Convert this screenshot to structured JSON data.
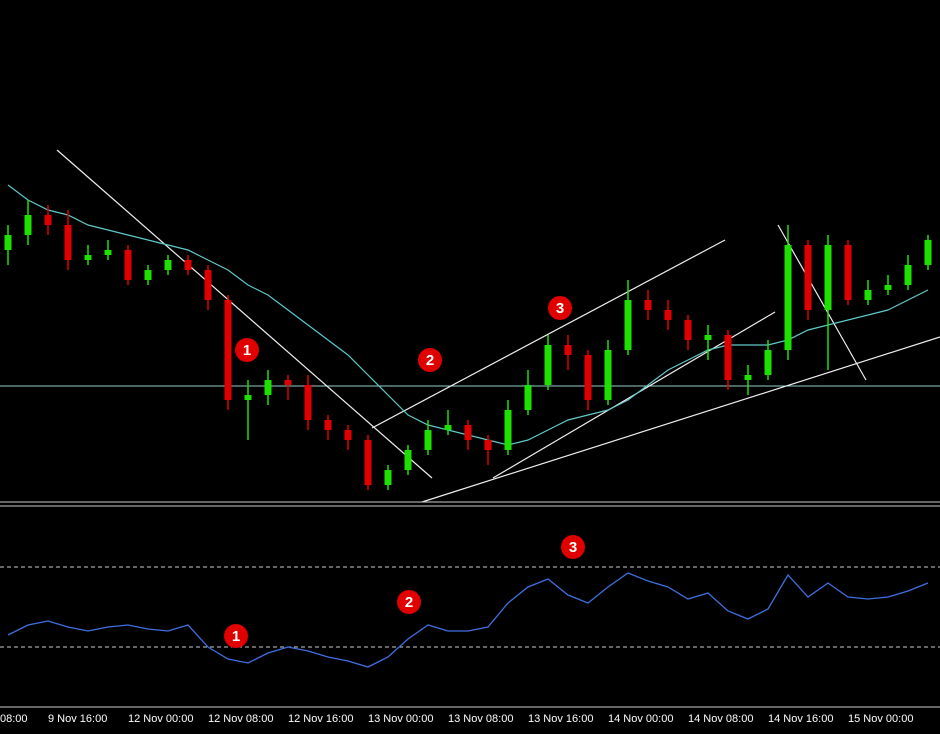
{
  "chart_data": [
    {
      "type": "candlestick",
      "ylim": [
        0,
        100
      ],
      "up_color": "#1ee000",
      "down_color": "#e00000",
      "open": [
        50,
        53,
        57,
        55,
        48,
        49,
        50,
        44,
        46,
        48,
        46,
        40,
        20,
        21,
        24,
        23,
        16,
        14,
        12,
        3,
        6,
        10,
        14,
        15,
        12,
        10,
        18,
        23,
        31,
        29,
        20,
        30,
        40,
        38,
        36,
        32,
        33,
        24,
        25,
        30,
        51,
        38,
        51,
        40,
        42,
        43,
        47
      ],
      "high": [
        55,
        60,
        59,
        58,
        51,
        52,
        51,
        47,
        49,
        49,
        47,
        41,
        24,
        26,
        25,
        25,
        17,
        15,
        13,
        7,
        11,
        16,
        18,
        16,
        13,
        20,
        26,
        33,
        33,
        30,
        32,
        44,
        42,
        40,
        37,
        35,
        34,
        27,
        32,
        55,
        52,
        53,
        52,
        44,
        45,
        49,
        53
      ],
      "low": [
        47,
        51,
        53,
        46,
        47,
        48,
        43,
        43,
        45,
        45,
        38,
        18,
        12,
        19,
        20,
        14,
        12,
        10,
        2,
        2,
        5,
        9,
        13,
        10,
        7,
        9,
        17,
        22,
        26,
        18,
        19,
        29,
        36,
        34,
        30,
        28,
        22,
        21,
        24,
        28,
        36,
        26,
        39,
        39,
        41,
        42,
        46
      ],
      "close": [
        53,
        57,
        55,
        48,
        49,
        50,
        44,
        46,
        48,
        46,
        40,
        20,
        21,
        24,
        23,
        16,
        14,
        12,
        3,
        6,
        10,
        14,
        15,
        12,
        10,
        18,
        23,
        31,
        29,
        20,
        30,
        40,
        38,
        36,
        32,
        33,
        24,
        25,
        30,
        51,
        38,
        51,
        40,
        42,
        43,
        47,
        52
      ],
      "ma": {
        "color": "#5fc8c8",
        "values": [
          63,
          60,
          58,
          57,
          55,
          54,
          53,
          52,
          51,
          50,
          48,
          46,
          43,
          41,
          38,
          35,
          32,
          29,
          25,
          21,
          17,
          15,
          14,
          13,
          12,
          11,
          12,
          14,
          16,
          17,
          18,
          20,
          23,
          26,
          28,
          30,
          31,
          31,
          31,
          32,
          34,
          35,
          36,
          37,
          38,
          40,
          42
        ]
      },
      "annotations": [
        "1",
        "2",
        "3"
      ]
    },
    {
      "type": "line",
      "ylim": [
        0,
        100
      ],
      "color": "#3f6fe0",
      "levels": [
        30,
        70
      ],
      "categories": [
        "08:00",
        null,
        null,
        null,
        "9 Nov 16:00",
        null,
        null,
        null,
        "12 Nov 00:00",
        null,
        null,
        null,
        "12 Nov 08:00",
        null,
        null,
        null,
        "12 Nov 16:00",
        null,
        null,
        null,
        "13 Nov 00:00",
        null,
        null,
        null,
        "13 Nov 08:00",
        null,
        null,
        null,
        "13 Nov 16:00",
        null,
        null,
        null,
        "14 Nov 00:00",
        null,
        null,
        null,
        "14 Nov 08:00",
        null,
        null,
        null,
        "14 Nov 16:00",
        null,
        null,
        null,
        "15 Nov 00:00",
        null,
        null
      ],
      "values": [
        36,
        41,
        43,
        40,
        38,
        40,
        41,
        39,
        38,
        41,
        30,
        24,
        22,
        27,
        30,
        28,
        25,
        23,
        20,
        25,
        34,
        41,
        38,
        38,
        40,
        52,
        60,
        64,
        56,
        52,
        60,
        67,
        63,
        60,
        54,
        57,
        48,
        44,
        49,
        66,
        55,
        62,
        55,
        54,
        55,
        58,
        62
      ],
      "annotations": [
        "1",
        "2",
        "3"
      ]
    }
  ]
}
